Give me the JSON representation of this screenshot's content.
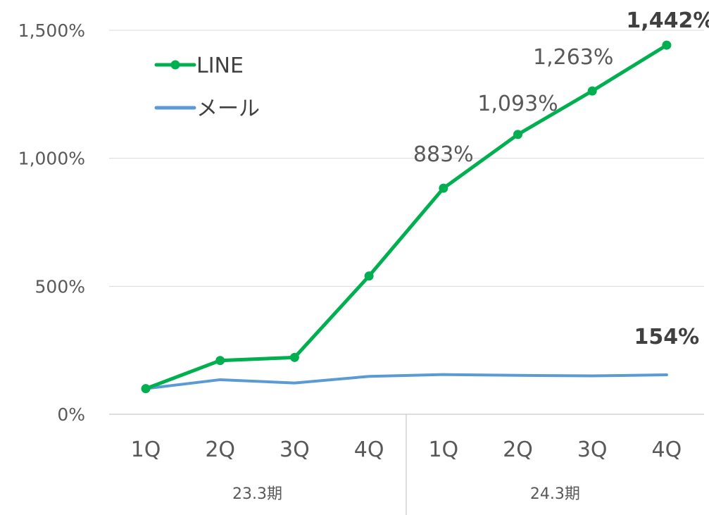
{
  "chart_data": {
    "type": "line",
    "categories": [
      "1Q",
      "2Q",
      "3Q",
      "4Q",
      "1Q",
      "2Q",
      "3Q",
      "4Q"
    ],
    "groups": [
      {
        "label": "23.3期",
        "start": 0,
        "end": 3
      },
      {
        "label": "24.3期",
        "start": 4,
        "end": 7
      }
    ],
    "series": [
      {
        "name": "LINE",
        "color": "#00b050",
        "marker": true,
        "values": [
          100,
          210,
          222,
          540,
          883,
          1093,
          1263,
          1442
        ]
      },
      {
        "name": "メール",
        "color": "#5b9bd5",
        "marker": false,
        "values": [
          100,
          135,
          122,
          148,
          155,
          152,
          150,
          154
        ]
      }
    ],
    "ylim": [
      0,
      1500
    ],
    "yticks": [
      0,
      500,
      1000,
      1500
    ],
    "ytick_labels": [
      "0%",
      "500%",
      "1,000%",
      "1,500%"
    ],
    "annotations": [
      {
        "series": 0,
        "index": 4,
        "text": "883%",
        "bold": false
      },
      {
        "series": 0,
        "index": 5,
        "text": "1,093%",
        "bold": false
      },
      {
        "series": 0,
        "index": 6,
        "text": "1,263%",
        "bold": false
      },
      {
        "series": 0,
        "index": 7,
        "text": "1,442%",
        "bold": true
      },
      {
        "series": 1,
        "index": 7,
        "text": "154%",
        "bold": true
      }
    ],
    "grid": true,
    "legend": "top-left"
  }
}
